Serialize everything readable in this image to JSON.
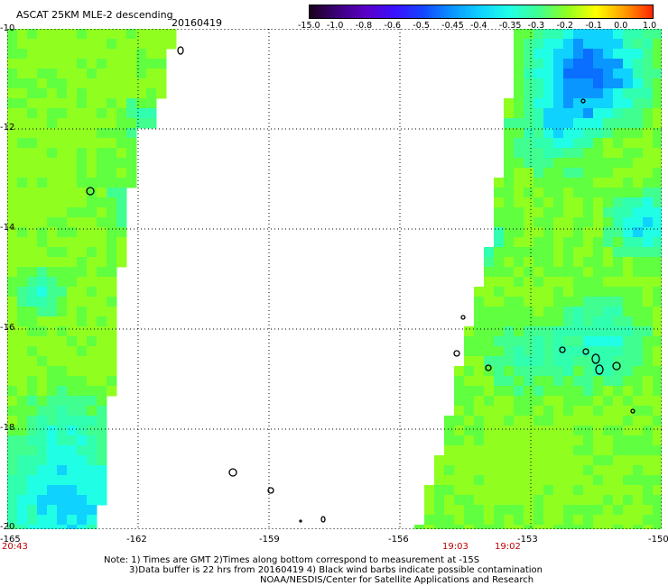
{
  "header": {
    "title": "ASCAT 25KM MLE-2 descending",
    "date": "20160419"
  },
  "colorbar": {
    "labels": [
      "-15.0",
      "-1.0",
      "-0.8",
      "-0.6",
      "-0.5",
      "-0.45",
      "-0.4",
      "-0.35",
      "-0.3",
      "-0.2",
      "-0.1",
      "0.0",
      "1.0"
    ],
    "colors": [
      "#1a001a",
      "#3c007a",
      "#5a00c8",
      "#3a10ff",
      "#1446ff",
      "#0a96ff",
      "#10d2ff",
      "#20ffe6",
      "#40ff90",
      "#90ff20",
      "#ffff00",
      "#ff9a00",
      "#ff2000"
    ]
  },
  "map": {
    "lat_labels": [
      "-10",
      "-12",
      "-14",
      "-16",
      "-18",
      "-20"
    ],
    "lon_labels": [
      "-165",
      "-162",
      "-159",
      "-156",
      "-153",
      "-150"
    ],
    "lat_range": [
      -20,
      -10
    ],
    "lon_range": [
      -165,
      -150
    ],
    "time_labels": [
      {
        "text": "20:43",
        "lon": -165
      },
      {
        "text": "19:03",
        "lon": -155.3
      },
      {
        "text": "19:02",
        "lon": -154.0
      }
    ]
  },
  "notes": {
    "line1": "Note: 1) Times are GMT 2)Times along bottom correspond to measurement at -15S",
    "line2": "3)Data buffer is 22 hrs from 20160419 4) Black wind barbs indicate possible contamination",
    "line3": "NOAA/NESDIS/Center for Satellite Applications and Research"
  }
}
